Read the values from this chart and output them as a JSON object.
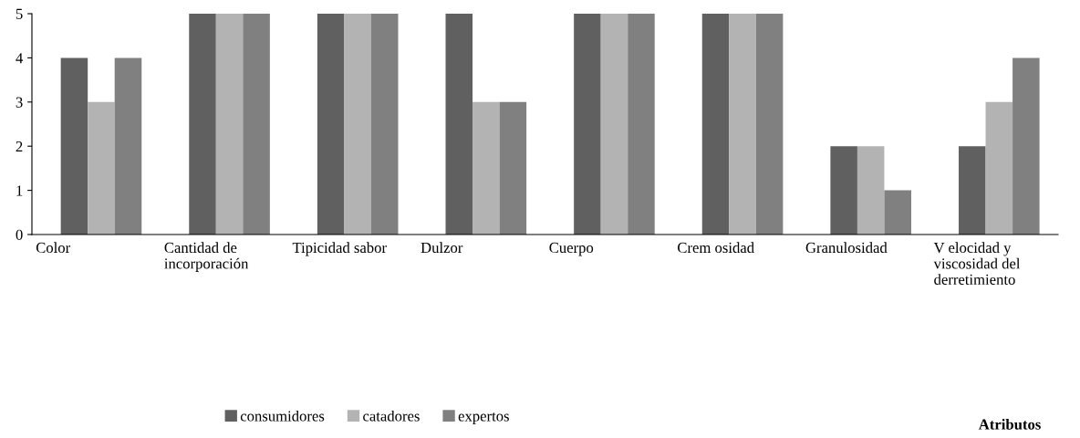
{
  "chart_data": {
    "type": "bar",
    "annotations": [
      "Atributos"
    ],
    "categories": [
      "Color",
      "Cantidad de\nincorporación",
      "Tipicidad sabor",
      "Dulzor",
      "Cuerpo",
      "Crem osidad",
      "Granulosidad",
      "V elocidad y\nviscosidad del\nderretimiento"
    ],
    "series": [
      {
        "name": "consumidores",
        "color": "#606060",
        "values": [
          4,
          5,
          5,
          5,
          5,
          5,
          2,
          2
        ]
      },
      {
        "name": "catadores",
        "color": "#b3b3b3",
        "values": [
          3,
          5,
          5,
          3,
          5,
          5,
          2,
          3
        ]
      },
      {
        "name": "expertos",
        "color": "#808080",
        "values": [
          4,
          5,
          5,
          3,
          5,
          5,
          1,
          4
        ]
      }
    ],
    "ylim": [
      0,
      5
    ],
    "yticks": [
      0,
      1,
      2,
      3,
      4,
      5
    ],
    "grid": false,
    "legend": "bottom"
  }
}
